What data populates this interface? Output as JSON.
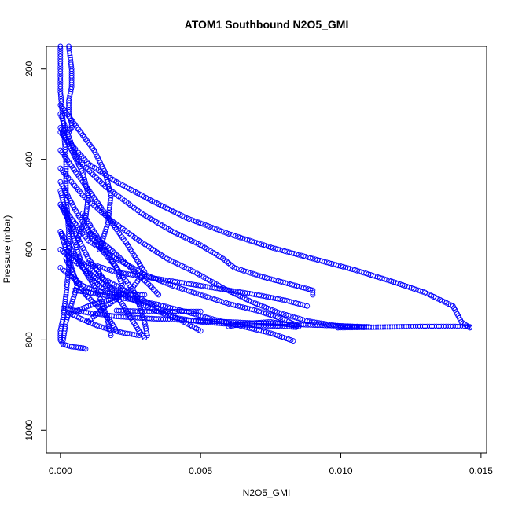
{
  "chart_data": {
    "type": "scatter",
    "title": "ATOM1 Southbound N2O5_GMI",
    "xlabel": "N2O5_GMI",
    "ylabel": "Pressure (mbar)",
    "xlim": [
      -0.0005,
      0.0152
    ],
    "ylim": [
      1050,
      150
    ],
    "y_axis_reversed": true,
    "x_ticks": [
      0,
      0.005,
      0.01,
      0.015
    ],
    "x_tick_labels": [
      "0.000",
      "0.005",
      "0.010",
      "0.015"
    ],
    "y_ticks": [
      200,
      400,
      600,
      800,
      1000
    ],
    "y_tick_labels": [
      "200",
      "400",
      "600",
      "800",
      "1000"
    ],
    "grid": false,
    "legend": "none",
    "marker": "open-circle",
    "color": "#0000ff",
    "series": [
      {
        "x": [
          0.0,
          0.0,
          0.0001,
          0.0002,
          0.0002,
          0.0003,
          0.0003,
          0.0002,
          0.0001,
          0.0,
          0.0,
          0.0001,
          0.0004,
          0.0008,
          0.0009
        ],
        "y": [
          150,
          250,
          320,
          400,
          480,
          560,
          640,
          700,
          750,
          780,
          800,
          810,
          815,
          818,
          820
        ]
      },
      {
        "x": [
          0.0003,
          0.0004,
          0.0004,
          0.0003,
          0.0003,
          0.0004,
          0.0004,
          0.0003,
          0.0003
        ],
        "y": [
          150,
          200,
          240,
          270,
          300,
          320,
          330,
          335,
          340
        ]
      },
      {
        "x": [
          0.0,
          0.0006,
          0.0016,
          0.0029,
          0.004,
          0.005,
          0.0058,
          0.0062,
          0.0072,
          0.0081,
          0.009,
          0.009
        ],
        "y": [
          300,
          400,
          460,
          520,
          560,
          590,
          620,
          640,
          660,
          675,
          690,
          700
        ]
      },
      {
        "x": [
          0.0,
          0.001,
          0.002,
          0.0032,
          0.0045,
          0.006,
          0.0075,
          0.009,
          0.0105,
          0.0118,
          0.013,
          0.014,
          0.0143,
          0.0146
        ],
        "y": [
          340,
          410,
          450,
          490,
          530,
          565,
          595,
          620,
          645,
          670,
          695,
          725,
          760,
          773
        ]
      },
      {
        "x": [
          0.0099,
          0.011,
          0.012,
          0.013,
          0.014,
          0.0146
        ],
        "y": [
          773,
          772,
          771,
          770,
          770,
          771
        ]
      },
      {
        "x": [
          0.0,
          0.0008,
          0.0018,
          0.0028,
          0.0038,
          0.0048,
          0.0058,
          0.0068,
          0.0078,
          0.0088,
          0.0098,
          0.0108
        ],
        "y": [
          420,
          480,
          535,
          580,
          620,
          650,
          685,
          715,
          740,
          758,
          768,
          772
        ]
      },
      {
        "x": [
          0.0,
          0.001,
          0.002,
          0.003,
          0.004,
          0.005,
          0.006,
          0.007,
          0.008,
          0.0085
        ],
        "y": [
          500,
          580,
          620,
          655,
          680,
          700,
          720,
          735,
          755,
          770
        ]
      },
      {
        "x": [
          0.001,
          0.002,
          0.003,
          0.004,
          0.005,
          0.006,
          0.007,
          0.008,
          0.0088
        ],
        "y": [
          630,
          650,
          660,
          670,
          680,
          690,
          700,
          712,
          725
        ]
      },
      {
        "x": [
          0.0005,
          0.0015,
          0.0025,
          0.0035,
          0.0045,
          0.0055,
          0.0065,
          0.0075,
          0.0083
        ],
        "y": [
          690,
          700,
          710,
          722,
          738,
          755,
          770,
          785,
          802
        ]
      },
      {
        "x": [
          0.0,
          0.0008,
          0.0016,
          0.0024,
          0.0032,
          0.004,
          0.005,
          0.006,
          0.007,
          0.008,
          0.0084
        ],
        "y": [
          600,
          640,
          680,
          705,
          730,
          750,
          760,
          765,
          768,
          770,
          772
        ]
      },
      {
        "x": [
          0.006,
          0.0065,
          0.007,
          0.0075,
          0.008,
          0.0085
        ],
        "y": [
          770,
          765,
          762,
          760,
          765,
          770
        ]
      },
      {
        "x": [
          0.0001,
          0.001,
          0.002,
          0.003,
          0.004,
          0.005,
          0.006,
          0.007,
          0.008,
          0.009,
          0.01,
          0.011
        ],
        "y": [
          730,
          740,
          748,
          752,
          755,
          758,
          760,
          763,
          765,
          767,
          769,
          771
        ]
      },
      {
        "x": [
          0.0,
          0.0008,
          0.0016,
          0.0024,
          0.003,
          0.0025,
          0.0018,
          0.001,
          0.0004
        ],
        "y": [
          380,
          450,
          520,
          590,
          650,
          690,
          710,
          725,
          740
        ]
      },
      {
        "x": [
          0.0,
          0.0006,
          0.0012,
          0.002,
          0.0027,
          0.003,
          0.0031
        ],
        "y": [
          450,
          520,
          580,
          640,
          700,
          760,
          790
        ]
      },
      {
        "x": [
          0.0,
          0.0005,
          0.001,
          0.0016,
          0.0022,
          0.0026,
          0.0028,
          0.003
        ],
        "y": [
          500,
          560,
          620,
          670,
          720,
          760,
          780,
          795
        ]
      },
      {
        "x": [
          0.0,
          0.0004,
          0.0008,
          0.0012,
          0.0015,
          0.0017,
          0.0018
        ],
        "y": [
          560,
          600,
          640,
          680,
          720,
          760,
          790
        ]
      },
      {
        "x": [
          0.0008,
          0.0012,
          0.0016,
          0.002,
          0.0022,
          0.002,
          0.0015,
          0.001
        ],
        "y": [
          520,
          560,
          600,
          640,
          680,
          710,
          730,
          760
        ]
      },
      {
        "x": [
          0.001,
          0.0018,
          0.0025,
          0.0032,
          0.0035
        ],
        "y": [
          560,
          600,
          640,
          680,
          700
        ]
      },
      {
        "x": [
          0.002,
          0.003,
          0.0035,
          0.004,
          0.005
        ],
        "y": [
          735,
          737,
          738,
          737,
          737
        ]
      },
      {
        "x": [
          0.0002,
          0.0005,
          0.0009,
          0.0014,
          0.0018,
          0.002
        ],
        "y": [
          620,
          660,
          700,
          730,
          760,
          780
        ]
      },
      {
        "x": [
          0.0,
          0.0003,
          0.0006,
          0.0004,
          0.0002,
          0.0001
        ],
        "y": [
          560,
          620,
          680,
          720,
          760,
          800
        ]
      },
      {
        "x": [
          0.0,
          0.0002,
          0.0004,
          0.0006,
          0.0008,
          0.0012,
          0.0016
        ],
        "y": [
          470,
          520,
          560,
          600,
          640,
          670,
          690
        ]
      },
      {
        "x": [
          0.0,
          0.0004,
          0.0008,
          0.0012,
          0.0016,
          0.002,
          0.0025,
          0.003
        ],
        "y": [
          640,
          660,
          680,
          690,
          695,
          700,
          700,
          700
        ]
      },
      {
        "x": [
          0.0002,
          0.0008,
          0.0014,
          0.002,
          0.0026,
          0.0032,
          0.0038,
          0.0044,
          0.005
        ],
        "y": [
          600,
          630,
          660,
          680,
          700,
          720,
          740,
          760,
          780
        ]
      },
      {
        "x": [
          0.0003,
          0.0008,
          0.0013,
          0.0018,
          0.0023,
          0.0028
        ],
        "y": [
          740,
          755,
          768,
          778,
          785,
          790
        ]
      },
      {
        "x": [
          0.0,
          0.0006,
          0.0012,
          0.0016,
          0.0018,
          0.0017,
          0.0014
        ],
        "y": [
          280,
          330,
          380,
          430,
          480,
          540,
          600
        ]
      },
      {
        "x": [
          0.0,
          0.0004,
          0.0008,
          0.001,
          0.0009,
          0.0006
        ],
        "y": [
          330,
          380,
          430,
          480,
          530,
          580
        ]
      }
    ]
  }
}
